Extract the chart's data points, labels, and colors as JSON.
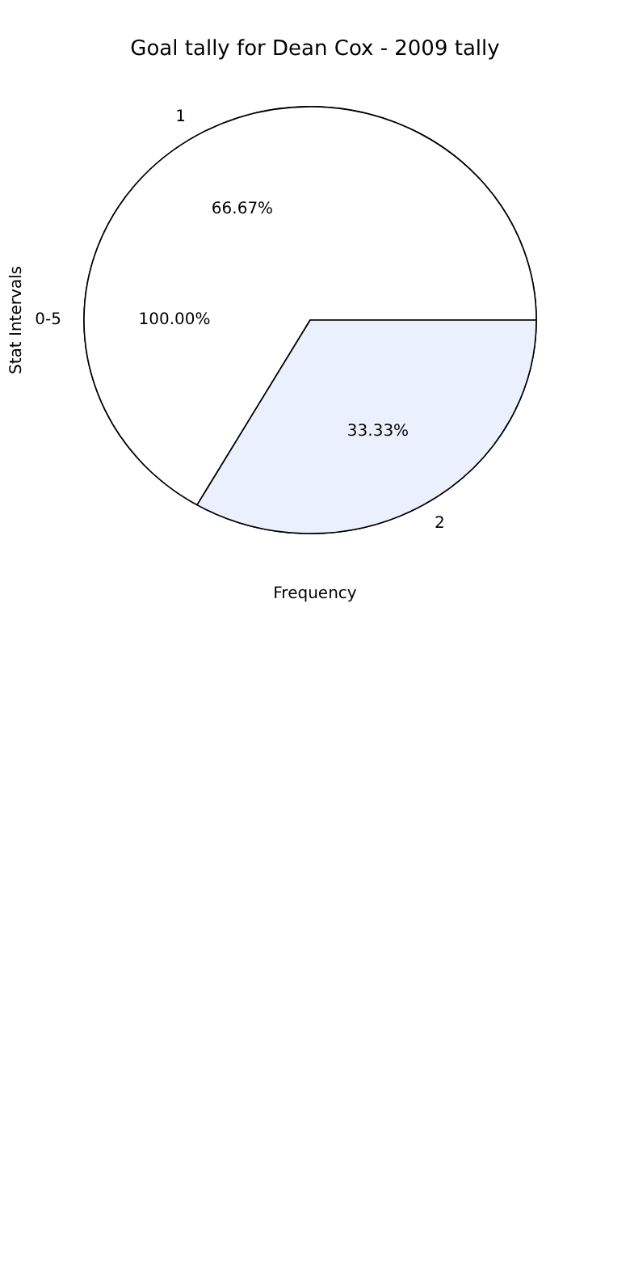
{
  "chart_data": [
    {
      "type": "pie",
      "title": "Goal tally for Dean Cox - 2009 tally",
      "xlabel": "Frequency",
      "ylabel": "Stat Intervals",
      "categories": [
        "0-5"
      ],
      "values": [
        100
      ],
      "colors": [
        "#ffffff"
      ],
      "value_labels": [
        "100.00%"
      ]
    },
    {
      "type": "pie",
      "categories": [
        "1",
        "2"
      ],
      "values": [
        66.67,
        33.33
      ],
      "colors": [
        "#ffffff",
        "#ebf0fd"
      ],
      "value_labels": [
        "66.67%",
        "33.33%"
      ]
    }
  ]
}
